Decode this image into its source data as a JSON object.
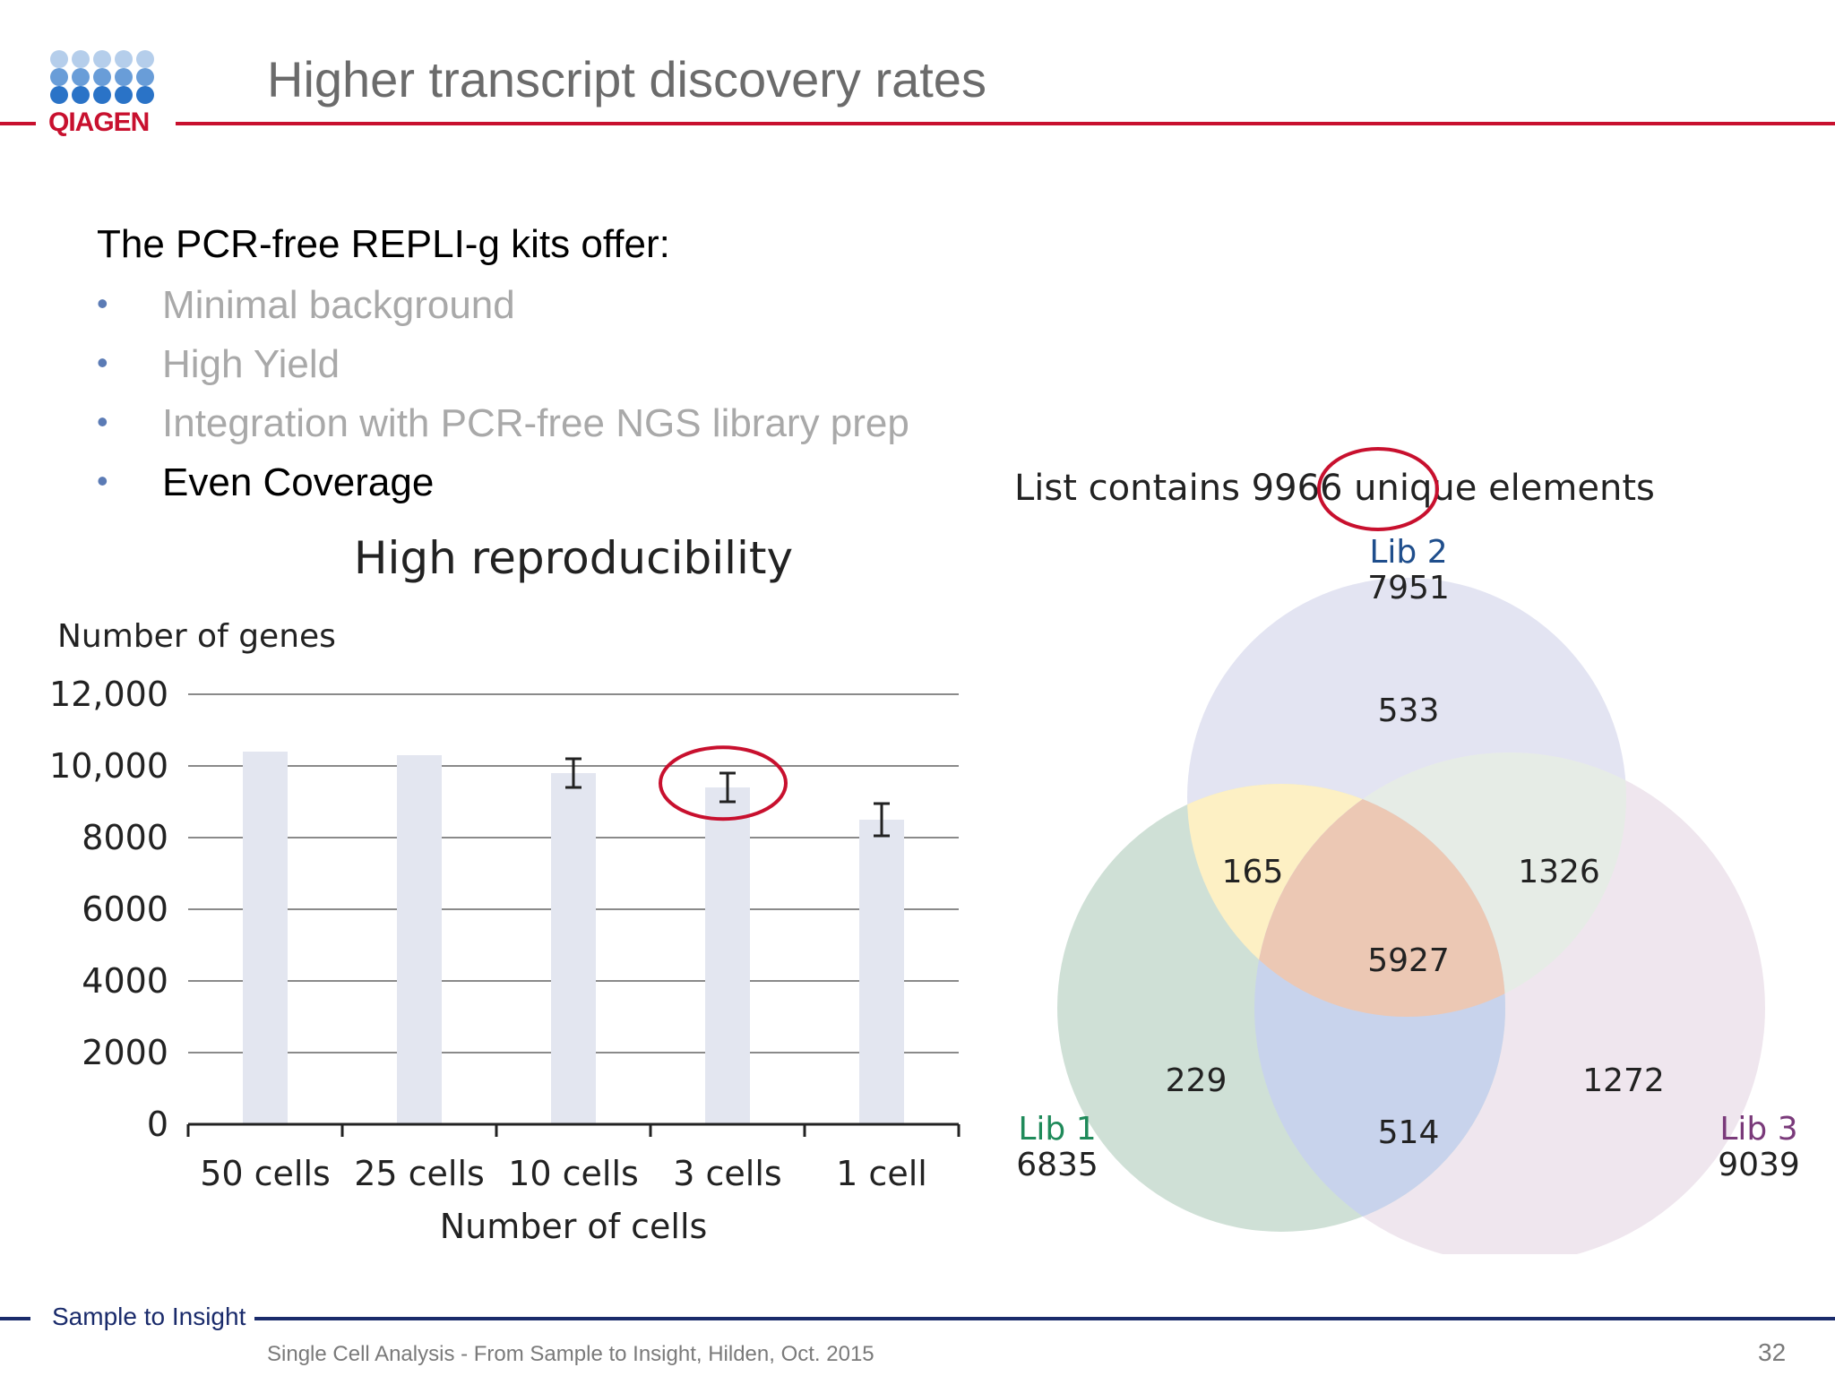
{
  "brand": {
    "logo_text": "QIAGEN",
    "red": "#c8102e",
    "navy": "#1a2b6b",
    "dot_color": "#2a73c7"
  },
  "header": {
    "title": "Higher transcript discovery rates"
  },
  "content": {
    "intro": "The PCR-free REPLI-g kits offer:",
    "bullets": [
      {
        "text": "Minimal background",
        "muted": true
      },
      {
        "text": "High Yield",
        "muted": true
      },
      {
        "text": "Integration with PCR-free NGS library prep",
        "muted": true
      },
      {
        "text": "Even Coverage",
        "muted": false
      }
    ]
  },
  "chart_data": [
    {
      "type": "bar",
      "title": "High reproducibility",
      "ylabel": "Number of genes",
      "xlabel": "Number of cells",
      "categories": [
        "50 cells",
        "25 cells",
        "10 cells",
        "3 cells",
        "1 cell"
      ],
      "values": [
        10400,
        10300,
        9800,
        9400,
        8500
      ],
      "error": [
        null,
        null,
        400,
        400,
        450
      ],
      "ylim": [
        0,
        12000
      ],
      "yticks": [
        0,
        2000,
        4000,
        6000,
        8000,
        10000,
        12000
      ],
      "ytick_labels": [
        "0",
        "2000",
        "4000",
        "6000",
        "8000",
        "10,000",
        "12,000"
      ],
      "grid": true,
      "bar_color": "#e3e6f0",
      "highlight_category": "3 cells",
      "highlight_color": "#c8102e"
    },
    {
      "type": "venn",
      "title_prefix": "List contains",
      "title_highlight": "9966",
      "title_suffix": "unique elements",
      "sets": [
        {
          "name": "Lib 1",
          "size": "6835",
          "color": "#1f8a5a",
          "fill": "#cfe0d6"
        },
        {
          "name": "Lib 2",
          "size": "7951",
          "color": "#1f4e8c",
          "fill": "#e3e4f2"
        },
        {
          "name": "Lib 3",
          "size": "9039",
          "color": "#7a3a7a",
          "fill": "#efe6ee"
        }
      ],
      "regions": {
        "lib2_only": "533",
        "lib1_lib2": "165",
        "lib2_lib3": "1326",
        "all": "5927",
        "lib1_only": "229",
        "lib1_lib3": "514",
        "lib3_only": "1272"
      },
      "region_colors": {
        "lib1_lib2": "#fdf0c4",
        "lib2_lib3": "#e6ece6",
        "lib1_lib3": "#c8d3ec",
        "all": "#ecc8b4"
      }
    }
  ],
  "footer": {
    "tagline": "Sample to Insight",
    "text": "Single Cell Analysis - From Sample to Insight, Hilden, Oct. 2015",
    "page": "32"
  }
}
